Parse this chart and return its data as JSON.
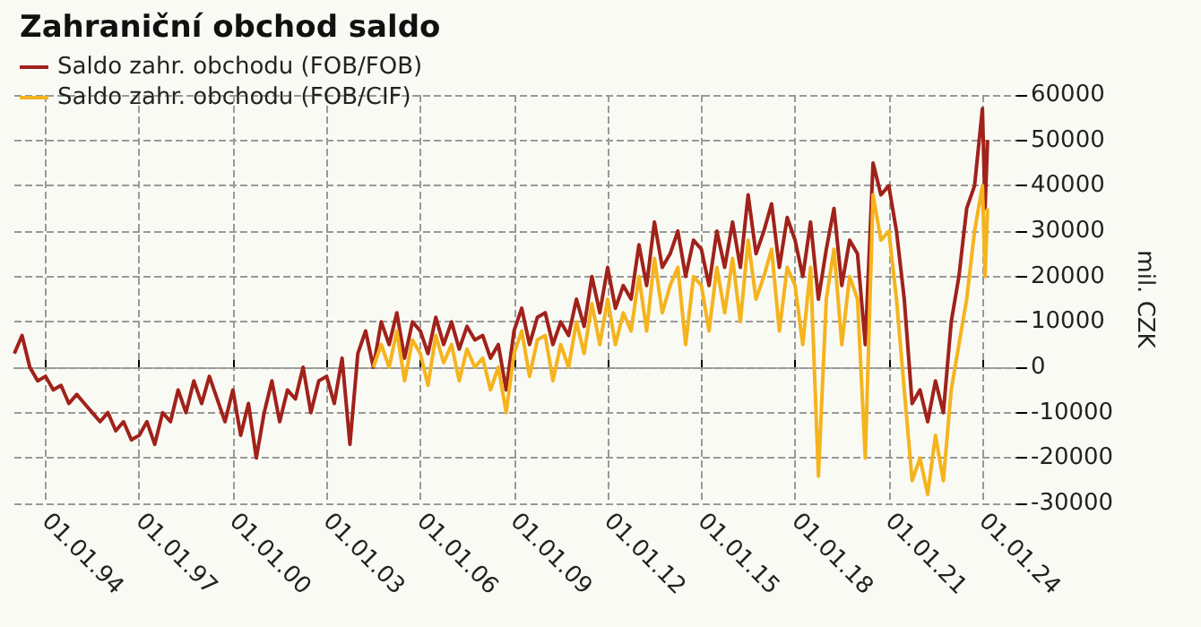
{
  "chart_data": {
    "type": "line",
    "title": "Zahraniční obchod saldo",
    "ylabel": "mil. CZK",
    "legend": "top left",
    "grid": true,
    "marker": "none",
    "line_style": "solid",
    "xlim": [
      "1993-01-01",
      "2025-02-01"
    ],
    "xticks": [
      {
        "value": "1994-01-01",
        "label": "01.01.94"
      },
      {
        "value": "1997-01-01",
        "label": "01.01.97"
      },
      {
        "value": "2000-01-01",
        "label": "01.01.00"
      },
      {
        "value": "2003-01-01",
        "label": "01.01.03"
      },
      {
        "value": "2006-01-01",
        "label": "01.01.06"
      },
      {
        "value": "2009-01-01",
        "label": "01.01.09"
      },
      {
        "value": "2012-01-01",
        "label": "01.01.12"
      },
      {
        "value": "2015-01-01",
        "label": "01.01.15"
      },
      {
        "value": "2018-01-01",
        "label": "01.01.18"
      },
      {
        "value": "2021-01-01",
        "label": "01.01.21"
      },
      {
        "value": "2024-01-01",
        "label": "01.01.24"
      }
    ],
    "ylim": [
      -30000,
      60000
    ],
    "yticks": [
      -30000,
      -20000,
      -10000,
      0,
      10000,
      20000,
      30000,
      40000,
      50000,
      60000
    ],
    "series": [
      {
        "name": "Saldo zahr. obchodu (FOB/FOB)",
        "color": "#a0221a",
        "x": [
          "1993-01",
          "1993-04",
          "1993-07",
          "1993-10",
          "1994-01",
          "1994-04",
          "1994-07",
          "1994-10",
          "1995-01",
          "1995-04",
          "1995-07",
          "1995-10",
          "1996-01",
          "1996-04",
          "1996-07",
          "1996-10",
          "1997-01",
          "1997-04",
          "1997-07",
          "1997-10",
          "1998-01",
          "1998-04",
          "1998-07",
          "1998-10",
          "1999-01",
          "1999-04",
          "1999-07",
          "1999-10",
          "2000-01",
          "2000-04",
          "2000-07",
          "2000-10",
          "2001-01",
          "2001-04",
          "2001-07",
          "2001-10",
          "2002-01",
          "2002-04",
          "2002-07",
          "2002-10",
          "2003-01",
          "2003-04",
          "2003-07",
          "2003-10",
          "2004-01",
          "2004-04",
          "2004-07",
          "2004-10",
          "2005-01",
          "2005-04",
          "2005-07",
          "2005-10",
          "2006-01",
          "2006-04",
          "2006-07",
          "2006-10",
          "2007-01",
          "2007-04",
          "2007-07",
          "2007-10",
          "2008-01",
          "2008-04",
          "2008-07",
          "2008-10",
          "2009-01",
          "2009-04",
          "2009-07",
          "2009-10",
          "2010-01",
          "2010-04",
          "2010-07",
          "2010-10",
          "2011-01",
          "2011-04",
          "2011-07",
          "2011-10",
          "2012-01",
          "2012-04",
          "2012-07",
          "2012-10",
          "2013-01",
          "2013-04",
          "2013-07",
          "2013-10",
          "2014-01",
          "2014-04",
          "2014-07",
          "2014-10",
          "2015-01",
          "2015-04",
          "2015-07",
          "2015-10",
          "2016-01",
          "2016-04",
          "2016-07",
          "2016-10",
          "2017-01",
          "2017-04",
          "2017-07",
          "2017-10",
          "2018-01",
          "2018-04",
          "2018-07",
          "2018-10",
          "2019-01",
          "2019-04",
          "2019-07",
          "2019-10",
          "2020-01",
          "2020-04",
          "2020-07",
          "2020-10",
          "2021-01",
          "2021-04",
          "2021-07",
          "2021-10",
          "2022-01",
          "2022-04",
          "2022-07",
          "2022-10",
          "2023-01",
          "2023-04",
          "2023-07",
          "2023-10",
          "2024-01",
          "2024-02",
          "2024-03"
        ],
        "values": [
          3000,
          7000,
          0,
          -3000,
          -2000,
          -5000,
          -4000,
          -8000,
          -6000,
          -8000,
          -10000,
          -12000,
          -10000,
          -14000,
          -12000,
          -16000,
          -15000,
          -12000,
          -17000,
          -10000,
          -12000,
          -5000,
          -10000,
          -3000,
          -8000,
          -2000,
          -7000,
          -12000,
          -5000,
          -15000,
          -8000,
          -20000,
          -10000,
          -3000,
          -12000,
          -5000,
          -7000,
          0,
          -10000,
          -3000,
          -2000,
          -8000,
          2000,
          -17000,
          3000,
          8000,
          0,
          10000,
          5000,
          12000,
          2000,
          10000,
          8000,
          3000,
          11000,
          5000,
          10000,
          4000,
          9000,
          6000,
          7000,
          2000,
          5000,
          -5000,
          8000,
          13000,
          5000,
          11000,
          12000,
          5000,
          10000,
          7000,
          15000,
          9000,
          20000,
          12000,
          22000,
          13000,
          18000,
          15000,
          27000,
          18000,
          32000,
          22000,
          25000,
          30000,
          20000,
          28000,
          26000,
          18000,
          30000,
          22000,
          32000,
          22000,
          38000,
          25000,
          30000,
          36000,
          22000,
          33000,
          28000,
          20000,
          32000,
          15000,
          26000,
          35000,
          18000,
          28000,
          25000,
          5000,
          45000,
          38000,
          40000,
          30000,
          15000,
          -8000,
          -5000,
          -12000,
          -3000,
          -10000,
          10000,
          20000,
          35000,
          40000,
          57000,
          35000,
          50000
        ]
      },
      {
        "name": "Saldo zahr. obchodu (FOB/CIF)",
        "color": "#f5b41e",
        "x": [
          "2004-07",
          "2004-10",
          "2005-01",
          "2005-04",
          "2005-07",
          "2005-10",
          "2006-01",
          "2006-04",
          "2006-07",
          "2006-10",
          "2007-01",
          "2007-04",
          "2007-07",
          "2007-10",
          "2008-01",
          "2008-04",
          "2008-07",
          "2008-10",
          "2009-01",
          "2009-04",
          "2009-07",
          "2009-10",
          "2010-01",
          "2010-04",
          "2010-07",
          "2010-10",
          "2011-01",
          "2011-04",
          "2011-07",
          "2011-10",
          "2012-01",
          "2012-04",
          "2012-07",
          "2012-10",
          "2013-01",
          "2013-04",
          "2013-07",
          "2013-10",
          "2014-01",
          "2014-04",
          "2014-07",
          "2014-10",
          "2015-01",
          "2015-04",
          "2015-07",
          "2015-10",
          "2016-01",
          "2016-04",
          "2016-07",
          "2016-10",
          "2017-01",
          "2017-04",
          "2017-07",
          "2017-10",
          "2018-01",
          "2018-04",
          "2018-07",
          "2018-10",
          "2019-01",
          "2019-04",
          "2019-07",
          "2019-10",
          "2020-01",
          "2020-04",
          "2020-07",
          "2020-10",
          "2021-01",
          "2021-04",
          "2021-07",
          "2021-10",
          "2022-01",
          "2022-04",
          "2022-07",
          "2022-10",
          "2023-01",
          "2023-04",
          "2023-07",
          "2023-10",
          "2024-01",
          "2024-02",
          "2024-03"
        ],
        "values": [
          0,
          5000,
          0,
          8000,
          -3000,
          6000,
          3000,
          -4000,
          7000,
          1000,
          5000,
          -3000,
          4000,
          0,
          2000,
          -5000,
          0,
          -10000,
          3000,
          8000,
          -2000,
          6000,
          7000,
          -3000,
          5000,
          0,
          10000,
          3000,
          14000,
          5000,
          15000,
          5000,
          12000,
          8000,
          20000,
          8000,
          24000,
          12000,
          18000,
          22000,
          5000,
          20000,
          18000,
          8000,
          22000,
          12000,
          24000,
          10000,
          28000,
          15000,
          20000,
          26000,
          8000,
          22000,
          18000,
          5000,
          22000,
          -24000,
          15000,
          26000,
          5000,
          20000,
          15000,
          -20000,
          38000,
          28000,
          30000,
          15000,
          -5000,
          -25000,
          -20000,
          -28000,
          -15000,
          -25000,
          -5000,
          5000,
          15000,
          30000,
          40000,
          20000,
          35000
        ]
      }
    ]
  }
}
